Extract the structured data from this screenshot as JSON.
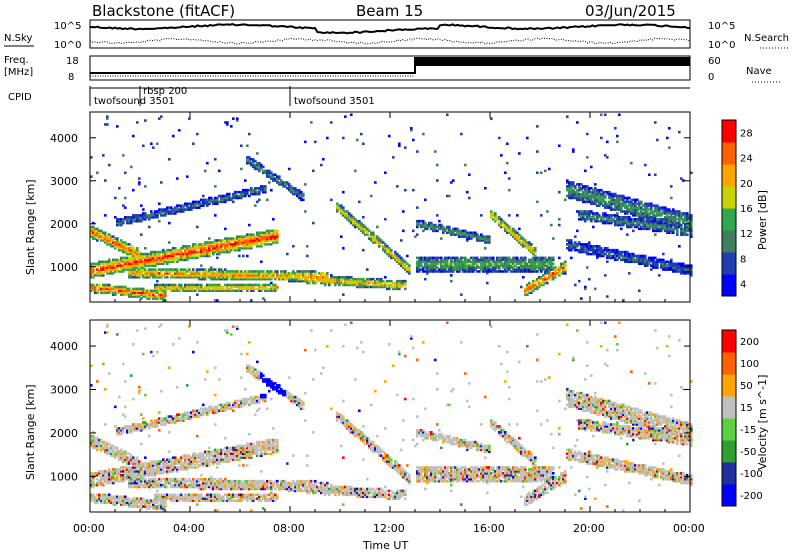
{
  "header": {
    "station": "Blackstone (fitACF)",
    "beam": "Beam 15",
    "date": "03/Jun/2015"
  },
  "param_panels": {
    "nsky_label": "N.Sky",
    "nsearch_label": "N.Search",
    "noise_ticks": [
      "10^5",
      "10^0"
    ],
    "freq_label_1": "Freq.",
    "freq_label_2": "[MHz]",
    "freq_ticks": [
      18,
      8
    ],
    "nave_label": "Nave",
    "nave_ticks": [
      60,
      0
    ],
    "cpid_label": "CPID",
    "cpid_segments": [
      {
        "name": "twofsound 3501",
        "start": 0.0
      },
      {
        "name": "rbsp 200",
        "start": 2.0
      },
      {
        "name": "twofsound 3501",
        "start": 8.0
      }
    ]
  },
  "chart_data": [
    {
      "type": "heatmap",
      "name": "power",
      "ylabel": "Slant Range [km]",
      "colorbar_label": "Power [dB]",
      "colorbar_ticks": [
        28,
        24,
        20,
        16,
        12,
        8,
        4
      ],
      "ylim": [
        180,
        4600
      ],
      "yticks": [
        1000,
        2000,
        3000,
        4000
      ],
      "xlim": [
        0,
        24
      ],
      "colors": [
        "#0000ff",
        "#1f3fb0",
        "#3f7f60",
        "#2fa84f",
        "#c8d400",
        "#ffa500",
        "#ff6000",
        "#ff0000"
      ]
    },
    {
      "type": "heatmap",
      "name": "velocity",
      "ylabel": "Slant Range [km]",
      "colorbar_label": "Velocity [m s^-1]",
      "colorbar_ticks": [
        "200",
        "100",
        "50",
        "15",
        "-15",
        "-50",
        "-100",
        "-200"
      ],
      "ylim": [
        180,
        4600
      ],
      "yticks": [
        1000,
        2000,
        3000,
        4000
      ],
      "xlim": [
        0,
        24
      ],
      "colors": [
        "#0000ff",
        "#20309f",
        "#2f9f2f",
        "#5fcf3f",
        "#c0c0c0",
        "#ffa500",
        "#ff6000",
        "#ff0000"
      ]
    }
  ],
  "time_axis": {
    "ticks": [
      "00:00",
      "04:00",
      "08:00",
      "12:00",
      "16:00",
      "20:00",
      "00:00"
    ],
    "label": "Time UT"
  }
}
